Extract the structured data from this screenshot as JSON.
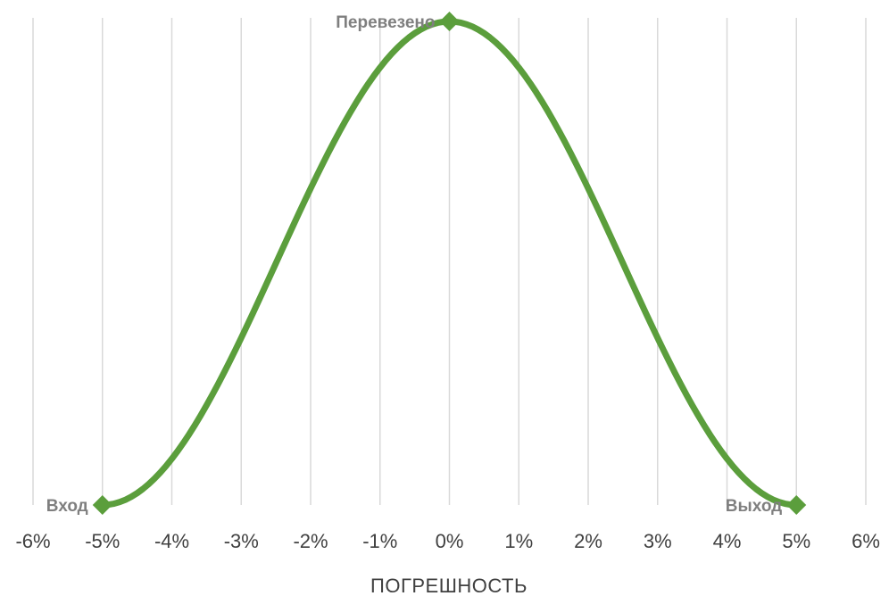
{
  "chart_data": {
    "type": "line",
    "xlabel": "ПОГРЕШНОСТЬ",
    "ylabel": "",
    "title": "",
    "x_ticks": [
      {
        "value": -6,
        "label": "-6%"
      },
      {
        "value": -5,
        "label": "-5%"
      },
      {
        "value": -4,
        "label": "-4%"
      },
      {
        "value": -3,
        "label": "-3%"
      },
      {
        "value": -2,
        "label": "-2%"
      },
      {
        "value": -1,
        "label": "-1%"
      },
      {
        "value": 0,
        "label": "0%"
      },
      {
        "value": 1,
        "label": "1%"
      },
      {
        "value": 2,
        "label": "2%"
      },
      {
        "value": 3,
        "label": "3%"
      },
      {
        "value": 4,
        "label": "4%"
      },
      {
        "value": 5,
        "label": "5%"
      },
      {
        "value": 6,
        "label": "6%"
      }
    ],
    "xlim": [
      -6,
      6
    ],
    "ylim": [
      0,
      1
    ],
    "grid": "vertical",
    "curve": "smooth bell-shaped line through the points",
    "series": [
      {
        "color": "#5b9e3c",
        "points": [
          {
            "x": -5,
            "y": 0,
            "label": "Вход",
            "label_side": "left"
          },
          {
            "x": 0,
            "y": 1,
            "label": "Перевезено",
            "label_side": "left"
          },
          {
            "x": 5,
            "y": 0,
            "label": "Выход",
            "label_side": "left"
          }
        ]
      }
    ]
  }
}
